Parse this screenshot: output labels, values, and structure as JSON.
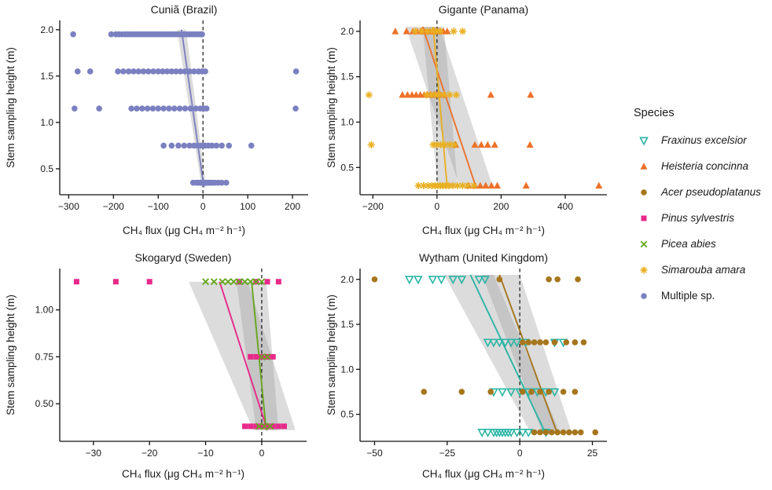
{
  "legend": {
    "title": "Species",
    "items": [
      {
        "label": "Fraxinus excelsior",
        "italic": true,
        "marker": "triangle-down-open",
        "color": "#2AB5A5"
      },
      {
        "label": "Heisteria concinna",
        "italic": true,
        "marker": "triangle",
        "color": "#ED7129"
      },
      {
        "label": "Acer pseudoplatanus",
        "italic": true,
        "marker": "circle",
        "color": "#A6761D"
      },
      {
        "label": "Pinus sylvestris",
        "italic": true,
        "marker": "square",
        "color": "#E7298A"
      },
      {
        "label": "Picea abies",
        "italic": true,
        "marker": "x",
        "color": "#66A61E"
      },
      {
        "label": "Simarouba amara",
        "italic": true,
        "marker": "asterisk",
        "color": "#E9B021"
      },
      {
        "label": "Multiple sp.",
        "italic": false,
        "marker": "circle",
        "color": "#7B80C0"
      }
    ]
  },
  "chart_data": [
    {
      "id": "cunia",
      "type": "scatter",
      "title": "Cuniã (Brazil)",
      "xlabel": "CH₄ flux (μg CH₄ m⁻² h⁻¹)",
      "ylabel": "Stem sampling height (m)",
      "xlim": [
        -320,
        235
      ],
      "ylim": [
        0.22,
        2.1
      ],
      "xticks": [
        -300,
        -200,
        -100,
        0,
        100,
        200
      ],
      "xtick_labels": [
        "−300",
        "−200",
        "−100",
        "0",
        "100",
        "200"
      ],
      "yticks": [
        0.5,
        1.0,
        1.5,
        2.0
      ],
      "ytick_labels": [
        "0.5",
        "1.0",
        "1.5",
        "2.0"
      ],
      "zero_line": true,
      "series": [
        {
          "name": "Multiple sp.",
          "marker": "circle",
          "color": "#7B80C0",
          "rows": [
            {
              "y": 1.95,
              "x": [
                -290,
                -205,
                -195,
                -188,
                -181,
                -174,
                -168,
                -162,
                -156,
                -150,
                -144,
                -138,
                -132,
                -126,
                -120,
                -114,
                -108,
                -102,
                -96,
                -90,
                -84,
                -78,
                -72,
                -66,
                -60,
                -54,
                -48,
                -42,
                -36,
                -30,
                -24,
                -18,
                -12,
                -6,
                -2
              ]
            },
            {
              "y": 1.55,
              "x": [
                -280,
                -252,
                -190,
                -178,
                -166,
                -155,
                -144,
                -133,
                -122,
                -111,
                -100,
                -90,
                -80,
                -70,
                -60,
                -50,
                -40,
                -30,
                -20,
                -10,
                -2,
                5,
                208
              ]
            },
            {
              "y": 1.15,
              "x": [
                -287,
                -232,
                -160,
                -148,
                -136,
                -124,
                -112,
                -100,
                -88,
                -76,
                -64,
                -52,
                -40,
                -28,
                -16,
                -6,
                2,
                8,
                207
              ]
            },
            {
              "y": 0.75,
              "x": [
                -88,
                -70,
                -55,
                -42,
                -30,
                -20,
                -12,
                -5,
                0,
                5,
                12,
                20,
                30,
                42,
                58,
                108
              ]
            },
            {
              "y": 0.35,
              "x": [
                -22,
                -15,
                -10,
                -6,
                -3,
                0,
                2,
                5,
                8,
                12,
                16,
                21,
                27,
                34,
                42,
                52
              ]
            }
          ],
          "trend": [
            [
              2,
              0.3
            ],
            [
              -48,
              2.0
            ]
          ],
          "ribbon": [
            [
              -58,
              2.0
            ],
            [
              -38,
              2.0
            ],
            [
              7,
              0.3
            ],
            [
              -3,
              0.3
            ]
          ]
        }
      ]
    },
    {
      "id": "gigante",
      "type": "scatter",
      "title": "Gigante (Panama)",
      "xlabel": "CH₄ flux (μg CH₄ m⁻² h⁻¹)",
      "ylabel": "Stem sampling height (m)",
      "xlim": [
        -240,
        530
      ],
      "ylim": [
        0.2,
        2.12
      ],
      "xticks": [
        -200,
        0,
        200,
        400
      ],
      "xtick_labels": [
        "−200",
        "0",
        "200",
        "400"
      ],
      "yticks": [
        0.5,
        1.0,
        1.5,
        2.0
      ],
      "ytick_labels": [
        "0.5",
        "1.0",
        "1.5",
        "2.0"
      ],
      "zero_line": true,
      "series": [
        {
          "name": "Heisteria concinna",
          "marker": "triangle",
          "color": "#ED7129",
          "rows": [
            {
              "y": 2.0,
              "x": [
                -130,
                -95,
                -75,
                -62,
                -50,
                -40,
                -30,
                -22,
                -14,
                -6,
                2,
                10,
                20,
                32
              ]
            },
            {
              "y": 1.3,
              "x": [
                -108,
                -92,
                -78,
                -65,
                -52,
                -40,
                -30,
                -20,
                -10,
                0,
                10,
                22,
                168,
                292
              ]
            },
            {
              "y": 0.75,
              "x": [
                58,
                118,
                138,
                158,
                180,
                290
              ]
            },
            {
              "y": 0.3,
              "x": [
                98,
                118,
                135,
                152,
                170,
                188,
                278,
                505
              ]
            }
          ],
          "trend": [
            [
              -45,
              2.05
            ],
            [
              122,
              0.28
            ]
          ],
          "ribbon": [
            [
              -98,
              2.05
            ],
            [
              8,
              2.05
            ],
            [
              175,
              0.28
            ],
            [
              72,
              0.28
            ]
          ]
        },
        {
          "name": "Simarouba amara",
          "marker": "asterisk",
          "color": "#E9B021",
          "rows": [
            {
              "y": 2.0,
              "x": [
                -68,
                -48,
                -30,
                -14,
                -2,
                10,
                52,
                80
              ]
            },
            {
              "y": 1.3,
              "x": [
                -212,
                -32,
                -18,
                -5,
                8,
                22,
                40,
                60
              ]
            },
            {
              "y": 0.75,
              "x": [
                -205,
                -12,
                0,
                12,
                25,
                40,
                55
              ]
            },
            {
              "y": 0.3,
              "x": [
                -58,
                -42,
                -28,
                -16,
                -6,
                2,
                10,
                18,
                28,
                38,
                50,
                64,
                80,
                96,
                115
              ]
            }
          ],
          "trend": [
            [
              -12,
              2.05
            ],
            [
              32,
              0.28
            ]
          ],
          "ribbon": [
            [
              -45,
              2.05
            ],
            [
              22,
              2.05
            ],
            [
              65,
              0.28
            ],
            [
              2,
              0.28
            ]
          ]
        }
      ]
    },
    {
      "id": "skogaryd",
      "type": "scatter",
      "title": "Skogaryd (Sweden)",
      "xlabel": "CH₄ flux (μg CH₄ m⁻² h⁻¹)",
      "ylabel": "Stem sampling height (m)",
      "xlim": [
        -36,
        8
      ],
      "ylim": [
        0.3,
        1.22
      ],
      "xticks": [
        -30,
        -20,
        -10,
        0
      ],
      "xtick_labels": [
        "−30",
        "−20",
        "−10",
        "0"
      ],
      "yticks": [
        0.5,
        0.75,
        1.0
      ],
      "ytick_labels": [
        "0.50",
        "0.75",
        "1.00"
      ],
      "zero_line": true,
      "series": [
        {
          "name": "Pinus sylvestris",
          "marker": "square",
          "color": "#E7298A",
          "rows": [
            {
              "y": 1.15,
              "x": [
                -33,
                -26,
                -20,
                -4,
                -1,
                1,
                3
              ]
            },
            {
              "y": 0.75,
              "x": [
                -2,
                -1,
                0,
                1,
                2
              ]
            },
            {
              "y": 0.38,
              "x": [
                -3,
                -2,
                -1,
                0,
                1,
                2,
                3,
                4
              ]
            }
          ],
          "trend": [
            [
              -7.5,
              1.15
            ],
            [
              1,
              0.36
            ]
          ],
          "ribbon": [
            [
              -13,
              1.15
            ],
            [
              -2.5,
              1.15
            ],
            [
              6,
              0.36
            ],
            [
              -1.5,
              0.36
            ]
          ]
        },
        {
          "name": "Picea abies",
          "marker": "x",
          "color": "#66A61E",
          "rows": [
            {
              "y": 1.15,
              "x": [
                -10,
                -8.5,
                -7,
                -6,
                -5,
                -4,
                -3,
                -2,
                -1,
                0
              ]
            },
            {
              "y": 0.75,
              "x": [
                0,
                1
              ]
            },
            {
              "y": 0.38,
              "x": [
                -0.5,
                0.5,
                1.5
              ]
            }
          ],
          "trend": [
            [
              -1.8,
              1.15
            ],
            [
              0.8,
              0.36
            ]
          ],
          "ribbon": [
            [
              -4.5,
              1.15
            ],
            [
              0.8,
              1.15
            ],
            [
              3,
              0.36
            ],
            [
              -1,
              0.36
            ]
          ]
        }
      ]
    },
    {
      "id": "wytham",
      "type": "scatter",
      "title": "Wytham (United Kingdom)",
      "xlabel": "CH₄ flux (μg CH₄ m⁻² h⁻¹)",
      "ylabel": "Stem sampling height (m)",
      "xlim": [
        -55,
        30
      ],
      "ylim": [
        0.2,
        2.12
      ],
      "xticks": [
        -50,
        -25,
        0,
        25
      ],
      "xtick_labels": [
        "−50",
        "−25",
        "0",
        "25"
      ],
      "yticks": [
        0.5,
        1.0,
        1.5,
        2.0
      ],
      "ytick_labels": [
        "0.5",
        "1.0",
        "1.5",
        "2.0"
      ],
      "zero_line": true,
      "series": [
        {
          "name": "Fraxinus excelsior",
          "marker": "triangle-down-open",
          "color": "#2AB5A5",
          "rows": [
            {
              "y": 2.0,
              "x": [
                -38,
                -35,
                -30,
                -27,
                -23,
                -20,
                -14,
                -12
              ]
            },
            {
              "y": 1.3,
              "x": [
                -11,
                -9,
                -7,
                -5,
                -3,
                -1,
                2,
                12,
                15
              ]
            },
            {
              "y": 0.75,
              "x": [
                -9,
                -6,
                -3,
                0,
                3,
                6,
                9,
                12
              ]
            },
            {
              "y": 0.3,
              "x": [
                -13,
                -11,
                -9,
                -8,
                -7,
                -6,
                -5,
                -4,
                -3,
                -1,
                1,
                3,
                9
              ]
            }
          ],
          "trend": [
            [
              -17,
              2.05
            ],
            [
              9,
              0.28
            ]
          ],
          "ribbon": [
            [
              -26,
              2.05
            ],
            [
              -9,
              2.05
            ],
            [
              14,
              0.28
            ],
            [
              4,
              0.28
            ]
          ]
        },
        {
          "name": "Acer pseudoplatanus",
          "marker": "circle",
          "color": "#A6761D",
          "rows": [
            {
              "y": 2.0,
              "x": [
                -50,
                -7,
                10,
                13,
                20
              ]
            },
            {
              "y": 1.3,
              "x": [
                1,
                3,
                5,
                7,
                9,
                12,
                16,
                19,
                22
              ]
            },
            {
              "y": 0.75,
              "x": [
                -33,
                -20,
                -10,
                1,
                4,
                7,
                10,
                15,
                19
              ]
            },
            {
              "y": 0.3,
              "x": [
                5,
                7,
                9,
                11,
                13,
                15,
                17,
                19,
                21,
                26
              ]
            }
          ],
          "trend": [
            [
              -7,
              2.05
            ],
            [
              13,
              0.28
            ]
          ],
          "ribbon": [
            [
              -13,
              2.05
            ],
            [
              0,
              2.05
            ],
            [
              18,
              0.28
            ],
            [
              8,
              0.28
            ]
          ]
        }
      ]
    }
  ]
}
